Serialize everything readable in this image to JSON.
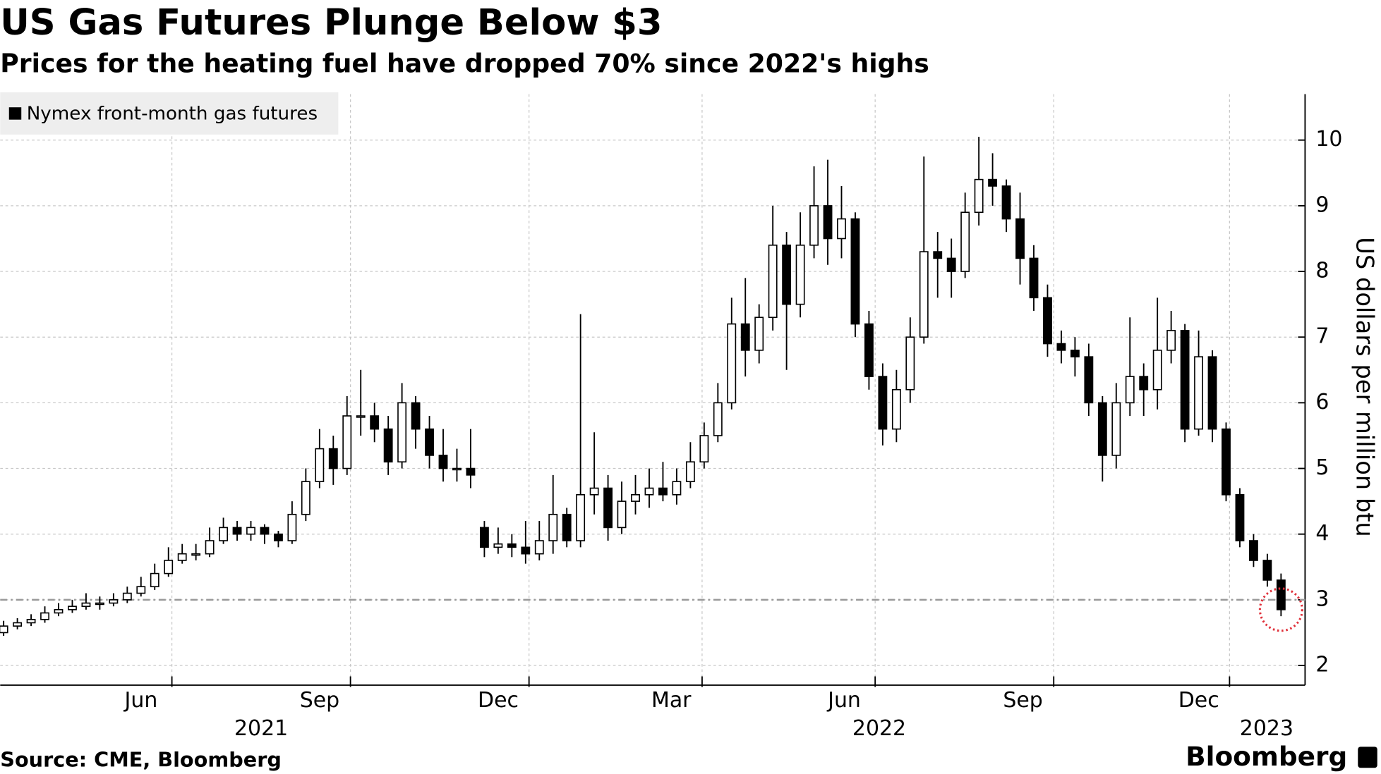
{
  "chart_data": {
    "type": "candlestick",
    "title": "US Gas Futures Plunge Below $3",
    "subtitle": "Prices for the heating fuel have dropped 70% since 2022's highs",
    "source": "Source: CME, Bloomberg",
    "brand": "Bloomberg",
    "y_axis_label": "US dollars per million btu",
    "ylim": [
      1.7,
      10.7
    ],
    "yticks": [
      2,
      3,
      4,
      5,
      6,
      7,
      8,
      9,
      10
    ],
    "xlim": [
      0,
      95
    ],
    "xticks": [
      {
        "value": 12.5,
        "label": "Jun"
      },
      {
        "value": 25.5,
        "label": "Sep"
      },
      {
        "value": 38.5,
        "label": "Dec"
      },
      {
        "value": 51.1,
        "label": "Mar"
      },
      {
        "value": 63.7,
        "label": "Jun"
      },
      {
        "value": 76.7,
        "label": "Sep"
      },
      {
        "value": 89.5,
        "label": "Dec"
      }
    ],
    "year_ticks": [
      {
        "value": 19,
        "label": "2021"
      },
      {
        "value": 64,
        "label": "2022"
      },
      {
        "value": 92.2,
        "label": "2023"
      }
    ],
    "reference_line": 3,
    "grid": true,
    "series": [
      {
        "name": "Nymex front-month gas futures",
        "color": "#000000",
        "open": [
          2.5,
          2.6,
          2.65,
          2.7,
          2.8,
          2.85,
          2.9,
          2.95,
          2.95,
          3.0,
          3.1,
          3.2,
          3.4,
          3.6,
          3.7,
          3.7,
          3.9,
          4.1,
          4.0,
          4.1,
          4.0,
          3.9,
          4.3,
          4.8,
          5.3,
          5.0,
          5.8,
          5.8,
          5.6,
          5.1,
          6.0,
          5.6,
          5.2,
          5.0,
          5.0,
          4.1,
          3.8,
          3.85,
          3.8,
          3.7,
          3.9,
          4.3,
          3.9,
          4.6,
          4.7,
          4.1,
          4.5,
          4.6,
          4.7,
          4.6,
          4.8,
          5.1,
          5.5,
          6.0,
          7.2,
          6.8,
          7.3,
          8.4,
          7.5,
          8.4,
          9.0,
          8.5,
          8.8,
          7.2,
          6.4,
          5.6,
          6.2,
          7.0,
          8.3,
          8.2,
          8.0,
          8.9,
          9.4,
          9.3,
          8.8,
          8.2,
          7.6,
          6.9,
          6.8,
          6.7,
          6.0,
          5.2,
          6.0,
          6.4,
          6.2,
          6.8,
          7.1,
          5.6,
          6.7,
          5.6,
          4.6,
          3.9,
          3.6,
          3.3
        ],
        "high": [
          2.68,
          2.72,
          2.78,
          2.9,
          2.95,
          3.0,
          3.1,
          3.05,
          3.1,
          3.2,
          3.35,
          3.55,
          3.8,
          3.85,
          3.85,
          4.1,
          4.25,
          4.2,
          4.2,
          4.15,
          4.05,
          4.5,
          5.0,
          5.6,
          5.5,
          6.1,
          6.5,
          6.0,
          5.8,
          6.3,
          6.1,
          5.8,
          5.6,
          5.3,
          5.6,
          4.2,
          4.1,
          4.0,
          4.2,
          4.2,
          4.9,
          4.4,
          7.35,
          5.55,
          4.9,
          4.8,
          4.9,
          5.0,
          5.1,
          5.0,
          5.4,
          5.7,
          6.3,
          7.6,
          7.9,
          7.5,
          9.0,
          8.6,
          8.9,
          9.6,
          9.7,
          9.3,
          8.9,
          7.4,
          6.6,
          6.5,
          7.3,
          9.75,
          8.6,
          8.5,
          9.2,
          10.05,
          9.8,
          9.4,
          9.2,
          8.4,
          7.8,
          7.1,
          7.0,
          6.9,
          6.1,
          6.3,
          7.3,
          6.6,
          7.6,
          7.4,
          7.2,
          7.1,
          6.8,
          5.7,
          4.7,
          4.0,
          3.7,
          3.4
        ],
        "low": [
          2.45,
          2.55,
          2.6,
          2.65,
          2.75,
          2.8,
          2.85,
          2.85,
          2.9,
          2.95,
          3.05,
          3.15,
          3.35,
          3.55,
          3.6,
          3.65,
          3.85,
          3.9,
          3.9,
          3.85,
          3.8,
          3.85,
          4.2,
          4.7,
          4.75,
          4.9,
          5.5,
          5.4,
          4.9,
          5.0,
          5.3,
          5.0,
          4.8,
          4.8,
          4.7,
          3.65,
          3.7,
          3.65,
          3.55,
          3.6,
          3.7,
          3.8,
          3.8,
          4.3,
          3.9,
          4.0,
          4.3,
          4.4,
          4.5,
          4.45,
          4.7,
          5.0,
          5.4,
          5.9,
          6.4,
          6.6,
          7.1,
          6.5,
          7.3,
          8.2,
          8.1,
          8.2,
          7.0,
          6.2,
          5.35,
          5.4,
          6.0,
          6.9,
          7.6,
          7.6,
          7.9,
          8.7,
          9.0,
          8.6,
          7.8,
          7.4,
          6.7,
          6.6,
          6.4,
          5.8,
          4.8,
          5.0,
          5.8,
          5.8,
          5.9,
          6.6,
          5.4,
          5.5,
          5.4,
          4.5,
          3.8,
          3.5,
          3.2,
          2.75
        ],
        "close": [
          2.6,
          2.65,
          2.7,
          2.8,
          2.85,
          2.9,
          2.95,
          2.95,
          3.0,
          3.1,
          3.2,
          3.4,
          3.6,
          3.7,
          3.7,
          3.9,
          4.1,
          4.0,
          4.1,
          4.0,
          3.9,
          4.3,
          4.8,
          5.3,
          5.0,
          5.8,
          5.8,
          5.6,
          5.1,
          6.0,
          5.6,
          5.2,
          5.0,
          5.0,
          4.9,
          3.8,
          3.85,
          3.8,
          3.7,
          3.9,
          4.3,
          3.9,
          4.6,
          4.7,
          4.1,
          4.5,
          4.6,
          4.7,
          4.6,
          4.8,
          5.1,
          5.5,
          6.0,
          7.2,
          6.8,
          7.3,
          8.4,
          7.5,
          8.4,
          9.0,
          8.5,
          8.8,
          7.2,
          6.4,
          5.6,
          6.2,
          7.0,
          8.3,
          8.2,
          8.0,
          8.9,
          9.4,
          9.3,
          8.8,
          8.2,
          7.6,
          6.9,
          6.8,
          6.7,
          6.0,
          5.2,
          6.0,
          6.4,
          6.2,
          6.8,
          7.1,
          5.6,
          6.7,
          5.6,
          4.6,
          3.9,
          3.6,
          3.3,
          2.85
        ]
      }
    ]
  }
}
